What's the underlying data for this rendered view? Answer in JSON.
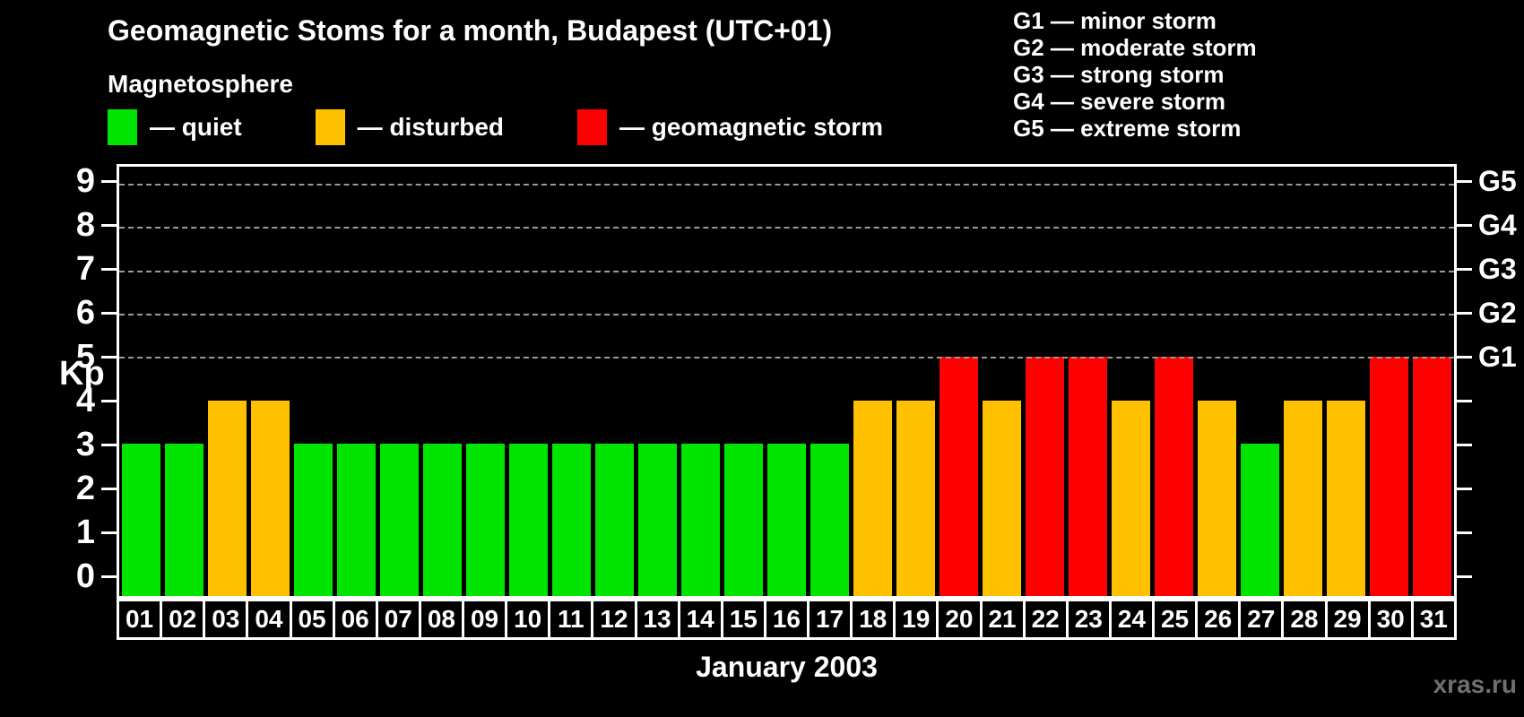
{
  "title": "Geomagnetic Stoms for a month, Budapest (UTC+01)",
  "magnetosphere_legend": {
    "heading": "Magnetosphere",
    "items": [
      {
        "key": "quiet",
        "label": "— quiet",
        "color": "#00e400"
      },
      {
        "key": "disturbed",
        "label": "— disturbed",
        "color": "#ffc000"
      },
      {
        "key": "storm",
        "label": "— geomagnetic storm",
        "color": "#ff0000"
      }
    ]
  },
  "g_scale_legend": [
    "G1 — minor storm",
    "G2 — moderate storm",
    "G3 — strong storm",
    "G4 — severe storm",
    "G5 — extreme storm"
  ],
  "chart_data": {
    "type": "bar",
    "title": "Geomagnetic Stoms for a month, Budapest (UTC+01)",
    "xlabel": "January 2003",
    "ylabel": "Kp",
    "categories": [
      "01",
      "02",
      "03",
      "04",
      "05",
      "06",
      "07",
      "08",
      "09",
      "10",
      "11",
      "12",
      "13",
      "14",
      "15",
      "16",
      "17",
      "18",
      "19",
      "20",
      "21",
      "22",
      "23",
      "24",
      "25",
      "26",
      "27",
      "28",
      "29",
      "30",
      "31"
    ],
    "values": [
      3,
      3,
      4,
      4,
      3,
      3,
      3,
      3,
      3,
      3,
      3,
      3,
      3,
      3,
      3,
      3,
      3,
      4,
      4,
      5,
      4,
      5,
      5,
      4,
      5,
      4,
      3,
      4,
      4,
      5,
      5
    ],
    "ylim": [
      -0.51,
      9.39
    ],
    "yticks": [
      0,
      1,
      2,
      3,
      4,
      5,
      6,
      7,
      8,
      9
    ],
    "gridlines_at": [
      5,
      6,
      7,
      8,
      9
    ],
    "right_axis": [
      {
        "kp": 5,
        "label": "G1"
      },
      {
        "kp": 6,
        "label": "G2"
      },
      {
        "kp": 7,
        "label": "G3"
      },
      {
        "kp": 8,
        "label": "G4"
      },
      {
        "kp": 9,
        "label": "G5"
      }
    ],
    "color_rules": {
      "quiet_max": 3,
      "disturbed_max": 4
    },
    "grid": "horizontal dashed lines at G1–G5 levels only",
    "legend_position": "top-left"
  },
  "watermark": "xras.ru",
  "colors": {
    "background": "#000000",
    "axis": "#ffffff",
    "text": "#ffffff",
    "gridline": "#9a9a9a",
    "quiet": "#00e400",
    "disturbed": "#ffc000",
    "storm": "#ff0000",
    "watermark": "#6f6f6f"
  }
}
